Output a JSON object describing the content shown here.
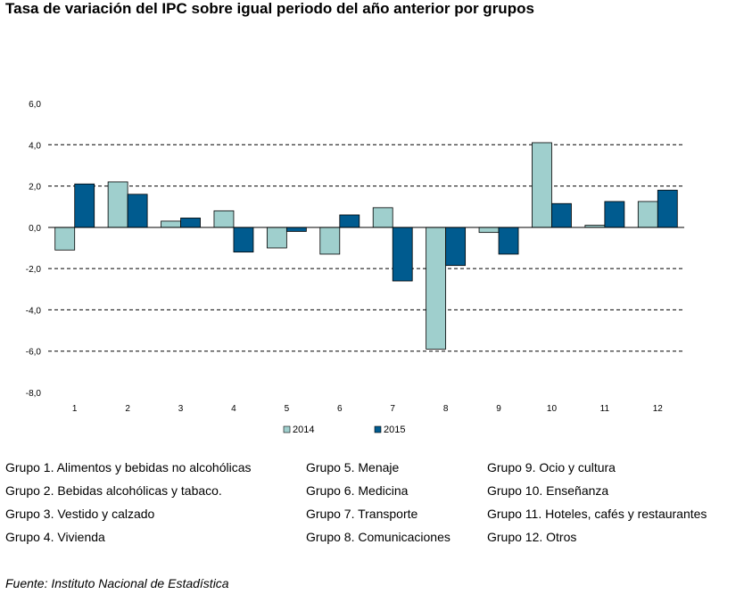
{
  "title": "Tasa de variación del IPC sobre igual periodo del año anterior por grupos",
  "chart_data": {
    "type": "bar",
    "categories": [
      "1",
      "2",
      "3",
      "4",
      "5",
      "6",
      "7",
      "8",
      "9",
      "10",
      "11",
      "12"
    ],
    "series": [
      {
        "name": "2014",
        "color": "#9fcfcd",
        "values": [
          -1.1,
          2.2,
          0.3,
          0.8,
          -1.0,
          -1.3,
          0.95,
          -5.9,
          -0.25,
          4.1,
          0.1,
          1.25
        ]
      },
      {
        "name": "2015",
        "color": "#005b8f",
        "values": [
          2.1,
          1.6,
          0.45,
          -1.2,
          -0.2,
          0.6,
          -2.6,
          -1.85,
          -1.3,
          1.15,
          1.25,
          1.8
        ]
      }
    ],
    "yticks": [
      "6,0",
      "4,0",
      "2,0",
      "0,0",
      "-2,0",
      "-4,0",
      "-6,0",
      "-8,0"
    ],
    "ylim": [
      -8,
      6
    ],
    "grid": "dashed horizontal",
    "legend": "bottom"
  },
  "groups": [
    "Grupo 1. Alimentos y bebidas no alcohólicas",
    "Grupo 2. Bebidas alcohólicas y  tabaco.",
    "Grupo 3. Vestido y calzado",
    "Grupo 4. Vivienda",
    "Grupo 5. Menaje",
    "Grupo 6. Medicina",
    "Grupo 7. Transporte",
    "Grupo 8. Comunicaciones",
    "Grupo 9. Ocio y cultura",
    "Grupo 10. Enseñanza",
    "Grupo 11. Hoteles, cafés y restaurantes",
    "Grupo 12. Otros"
  ],
  "source": "Fuente: Instituto Nacional de Estadística"
}
